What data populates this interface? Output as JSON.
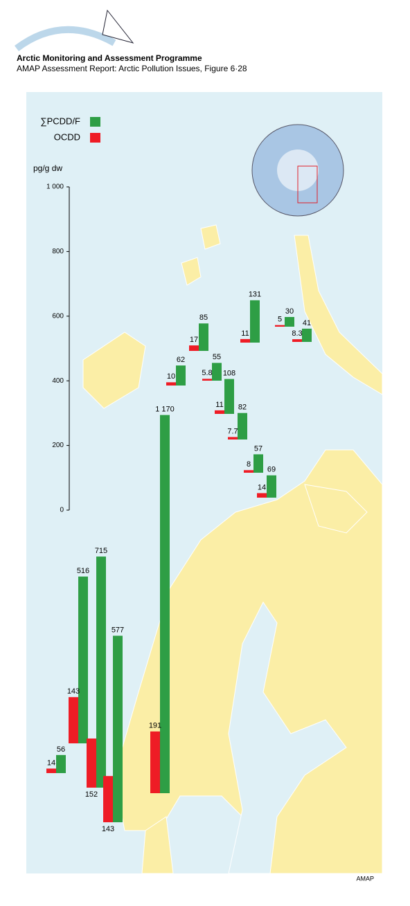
{
  "header": {
    "title": "Arctic Monitoring and Assessment Programme",
    "subtitle": "AMAP Assessment Report: Arctic Pollution Issues, Figure 6·28"
  },
  "credit": "AMAP",
  "chart_data": {
    "type": "bar",
    "y_label": "pg/g dw",
    "ylim": [
      0,
      1000
    ],
    "yticks": [
      0,
      200,
      400,
      600,
      800,
      {
        "value": 1000,
        "label": "1 000"
      }
    ],
    "categories": [
      null,
      null,
      null,
      null,
      null,
      null,
      null,
      null,
      null,
      null,
      null,
      null,
      null,
      null,
      null
    ],
    "series": [
      {
        "name": "∑PCDD/F",
        "color": "#2e9e45",
        "values": [
          56,
          516,
          715,
          577,
          1170,
          62,
          85,
          55,
          108,
          82,
          57,
          69,
          131,
          30,
          41
        ],
        "value_labels": [
          "56",
          "516",
          "715",
          "577",
          "1 170",
          "62",
          "85",
          "55",
          "108",
          "82",
          "57",
          "69",
          "131",
          "30",
          "41"
        ]
      },
      {
        "name": "OCDD",
        "color": "#ee1c25",
        "values": [
          14,
          143,
          152,
          143,
          191,
          10,
          17,
          5.8,
          11,
          7.7,
          8,
          14,
          11,
          5,
          8.3
        ]
      }
    ]
  }
}
